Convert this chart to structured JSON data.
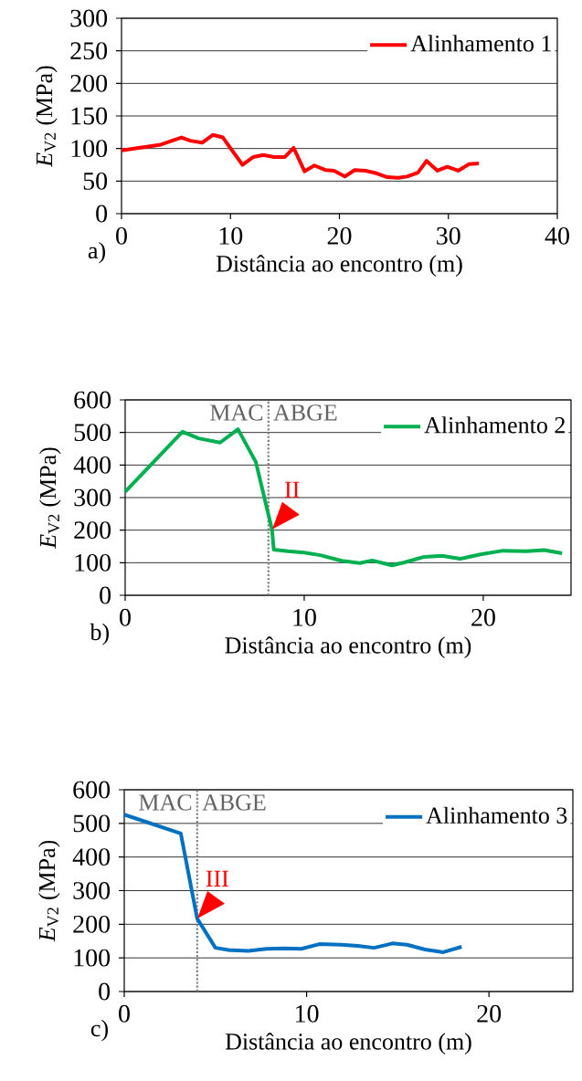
{
  "chart_data": [
    {
      "type": "line",
      "xlabel": "Distância ao encontro (m)",
      "ylabel": "*E*$_{V2}$ (MPa)",
      "xlim": [
        0,
        40
      ],
      "xticks": [
        0,
        10,
        20,
        30,
        40
      ],
      "ylim": [
        0,
        300
      ],
      "yticks": [
        0,
        50,
        100,
        150,
        200,
        250,
        300
      ],
      "grid": "y",
      "legend": "top right",
      "series": [
        {
          "name": "Alinhamento 1",
          "color": "#ff0000",
          "x": [
            0,
            3.6,
            5.5,
            6.3,
            7.4,
            8.4,
            9.3,
            11.1,
            12.1,
            13,
            14,
            15,
            15.8,
            16.8,
            17.7,
            18.7,
            19.5,
            20.5,
            21.4,
            22.4,
            23.4,
            24.4,
            25.4,
            26.2,
            27.2,
            28,
            29,
            29.9,
            30.9,
            31.9,
            32.8
          ],
          "values": [
            97,
            106,
            117,
            112,
            109,
            121,
            117,
            75,
            87,
            90,
            87,
            87,
            101,
            65,
            74,
            67,
            66,
            57,
            67,
            66,
            62,
            56,
            55,
            57,
            63,
            81,
            66,
            72,
            66,
            76,
            77
          ]
        }
      ],
      "annotations": [
        "a)"
      ]
    },
    {
      "type": "line",
      "xlabel": "Distância ao encontro (m)",
      "ylabel": "*E*$_{V2}$ (MPa)",
      "xlim": [
        0,
        24.9
      ],
      "xticks": [
        0,
        10,
        20
      ],
      "ylim": [
        0,
        600
      ],
      "yticks": [
        0,
        100,
        200,
        300,
        400,
        500,
        600
      ],
      "grid": "y",
      "legend": "top right",
      "series": [
        {
          "name": "Alinhamento 2",
          "color": "#00b050",
          "x": [
            0,
            3.2,
            4.1,
            5.3,
            6.3,
            7.3,
            8.2,
            8.3,
            9.1,
            10,
            10.9,
            12.1,
            13.1,
            13.8,
            14.9,
            15.6,
            16.7,
            17.7,
            18.7,
            19.9,
            21.1,
            22.4,
            23.4,
            24.4
          ],
          "values": [
            318,
            502,
            482,
            469,
            510,
            409,
            202,
            140,
            135,
            131,
            123,
            106,
            99,
            107,
            92,
            101,
            118,
            121,
            112,
            126,
            137,
            135,
            139,
            129
          ]
        }
      ],
      "ref_lines": [
        {
          "axis": "x",
          "value": 8,
          "color": "#808080",
          "line_style": "dotted"
        }
      ],
      "annotations": [
        "b)",
        "MAC",
        "ABGE",
        {
          "text": "II",
          "x": 8.2,
          "y": 202
        }
      ]
    },
    {
      "type": "line",
      "xlabel": "Distância ao encontro (m)",
      "ylabel": "*E*$_{V2}$ (MPa)",
      "xlim": [
        0,
        24.6
      ],
      "xticks": [
        0,
        10,
        20
      ],
      "ylim": [
        0,
        600
      ],
      "yticks": [
        0,
        100,
        200,
        300,
        400,
        500,
        600
      ],
      "grid": "y",
      "legend": "top right",
      "series": [
        {
          "name": "Alinhamento 3",
          "color": "#0070c0",
          "x": [
            0,
            3.1,
            4,
            5,
            5.8,
            6.8,
            7.8,
            8.8,
            9.7,
            10.7,
            11.9,
            12.8,
            13.7,
            14.7,
            15.5,
            16.5,
            17.5,
            18.5
          ],
          "values": [
            526,
            470,
            217,
            130,
            123,
            121,
            127,
            128,
            127,
            141,
            139,
            136,
            130,
            143,
            139,
            125,
            117,
            133
          ]
        }
      ],
      "ref_lines": [
        {
          "axis": "x",
          "value": 4,
          "color": "#808080",
          "line_style": "dotted"
        }
      ],
      "annotations": [
        "c)",
        "MAC",
        "ABGE",
        {
          "text": "III",
          "x": 4,
          "y": 217
        }
      ]
    }
  ]
}
